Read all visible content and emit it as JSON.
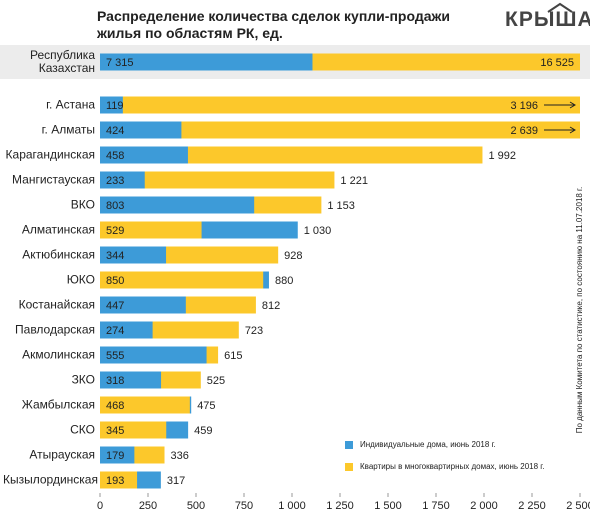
{
  "header": {
    "title": "Распределение количества сделок купли-продажи жилья по областям РК, ед.",
    "logo": "КРЫША"
  },
  "note": "По данным Комитета по статистике, по состоянию на 11.07.2018 г.",
  "chart_data": [
    {
      "type": "bar",
      "categories": [
        "Республика Казахстан"
      ],
      "series": [
        {
          "color": "#3d9bd8",
          "values": [
            7315
          ],
          "value_labels": [
            "7 315"
          ]
        },
        {
          "color": "#fcc82b",
          "values": [
            16525
          ],
          "value_labels": [
            "16 525"
          ]
        }
      ]
    },
    {
      "type": "bar",
      "categories": [
        "г. Астана",
        "г. Алматы",
        "Карагандинская",
        "Мангистауская",
        "ВКО",
        "Алматинская",
        "Актюбинская",
        "ЮКО",
        "Костанайская",
        "Павлодарская",
        "Акмолинская",
        "ЗКО",
        "Жамбылская",
        "СКО",
        "Атырауская",
        "Кызылординская"
      ],
      "series": [
        {
          "name": "Индивидуальные дома, июнь 2018 г.",
          "color": "#3d9bd8",
          "values": [
            119,
            424,
            458,
            233,
            803,
            1030,
            344,
            880,
            447,
            274,
            555,
            318,
            475,
            459,
            179,
            317
          ],
          "value_labels": [
            "119",
            "424",
            "458",
            "233",
            "803",
            "1 030",
            "344",
            "880",
            "447",
            "274",
            "555",
            "318",
            "475",
            "459",
            "179",
            "317"
          ]
        },
        {
          "name": "Квартиры в многоквартирных домах, июнь 2018 г.",
          "color": "#fcc82b",
          "values": [
            3196,
            2639,
            1992,
            1221,
            1153,
            529,
            928,
            850,
            812,
            723,
            615,
            525,
            468,
            345,
            336,
            193
          ],
          "value_labels": [
            "3 196",
            "2 639",
            "1 992",
            "1 221",
            "1 153",
            "529",
            "928",
            "850",
            "812",
            "723",
            "615",
            "525",
            "468",
            "345",
            "336",
            "193"
          ]
        }
      ],
      "xlim": [
        0,
        2500
      ],
      "xticks": [
        0,
        250,
        500,
        750,
        {
          "value": 1000,
          "label": "1 000"
        },
        {
          "value": 1250,
          "label": "1 250"
        },
        {
          "value": 1500,
          "label": "1 500"
        },
        {
          "value": 1750,
          "label": "1 750"
        },
        {
          "value": 2000,
          "label": "2 000"
        },
        {
          "value": 2250,
          "label": "2 250"
        },
        {
          "value": 2500,
          "label": "2 500"
        }
      ],
      "legend": "bottom right"
    }
  ]
}
